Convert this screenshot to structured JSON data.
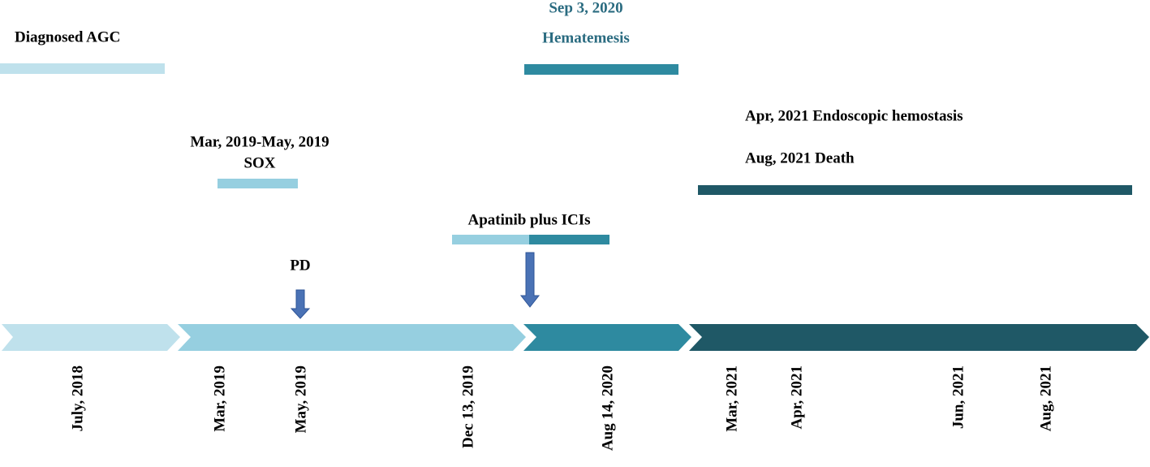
{
  "events": [
    {
      "label": "Diagnosed AGC"
    },
    {
      "date": "Mar, 2019-May, 2019",
      "label": "SOX"
    },
    {
      "label": "PD"
    },
    {
      "label": "Apatinib plus ICIs"
    },
    {
      "date": "Sep 3, 2020",
      "label": "Hematemesis"
    },
    {
      "label": "Apr, 2021 Endoscopic hemostasis"
    },
    {
      "label": "Aug, 2021 Death"
    }
  ],
  "axis_dates": [
    "July, 2018",
    "Mar, 2019",
    "May, 2019",
    "Dec 13, 2019",
    "Aug 14, 2020",
    "Mar, 2021",
    "Apr, 2021",
    "Jun, 2021",
    "Aug, 2021"
  ]
}
